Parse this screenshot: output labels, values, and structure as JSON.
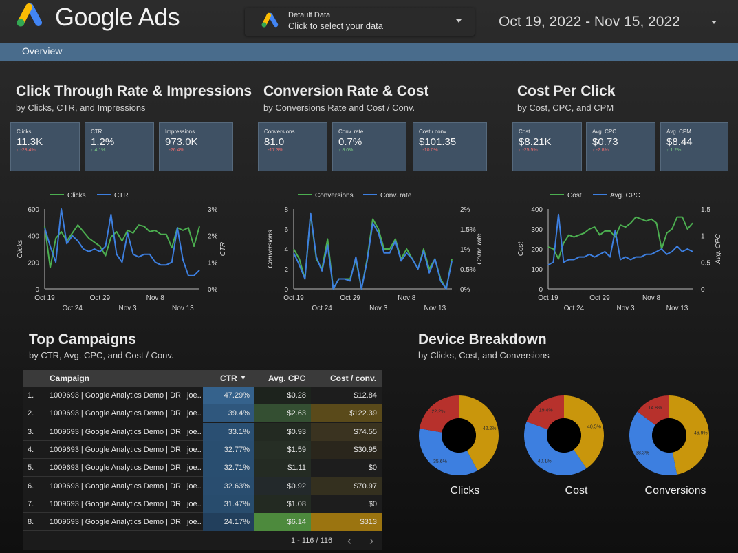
{
  "header": {
    "logo_text": "Google Ads",
    "data_source": {
      "title": "Default Data",
      "subtitle": "Click to select your data"
    },
    "date_range": "Oct 19, 2022 - Nov 15, 2022"
  },
  "nav": {
    "tab": "Overview"
  },
  "sections": {
    "ctr": {
      "title": "Click Through Rate & Impressions",
      "subtitle": "by Clicks, CTR, and Impressions"
    },
    "conv": {
      "title": "Conversion Rate & Cost",
      "subtitle": "by Conversions Rate and Cost / Conv."
    },
    "cpc": {
      "title": "Cost Per Click",
      "subtitle": "by Cost, CPC, and CPM"
    },
    "campaigns": {
      "title": "Top Campaigns",
      "subtitle": "by CTR, Avg. CPC, and Cost / Conv."
    },
    "device": {
      "title": "Device Breakdown",
      "subtitle": "by Clicks, Cost, and Conversions"
    }
  },
  "kpis": [
    {
      "label": "Clicks",
      "value": "11.3K",
      "delta": "↓ -23.4%",
      "direction": "down"
    },
    {
      "label": "CTR",
      "value": "1.2%",
      "delta": "↑ 4.1%",
      "direction": "up"
    },
    {
      "label": "Impressions",
      "value": "973.0K",
      "delta": "↓ -26.4%",
      "direction": "down"
    },
    {
      "label": "Conversions",
      "value": "81.0",
      "delta": "↓ -17.3%",
      "direction": "down"
    },
    {
      "label": "Conv. rate",
      "value": "0.7%",
      "delta": "↑ 8.0%",
      "direction": "up"
    },
    {
      "label": "Cost / conv.",
      "value": "$101.35",
      "delta": "↓ -10.0%",
      "direction": "down"
    },
    {
      "label": "Cost",
      "value": "$8.21K",
      "delta": "↓ -25.5%",
      "direction": "down"
    },
    {
      "label": "Avg. CPC",
      "value": "$0.73",
      "delta": "↓ -2.8%",
      "direction": "down"
    },
    {
      "label": "Avg. CPM",
      "value": "$8.44",
      "delta": "↑ 1.2%",
      "direction": "up"
    }
  ],
  "colors": {
    "green": "#4caf50",
    "blue": "#3d7fe0",
    "red": "#b7312c",
    "gold": "#c9960c",
    "slate": "#496c8c"
  },
  "chart_data": [
    {
      "type": "line",
      "x_ticks_top": [
        "Oct 19",
        "Oct 29",
        "Nov 8"
      ],
      "x_ticks_bottom": [
        "Oct 24",
        "Nov 3",
        "Nov 13"
      ],
      "ylabel_left": "Clicks",
      "ylabel_right": "CTR",
      "ylim_left": [
        0,
        600
      ],
      "yticks_left": [
        "0",
        "200",
        "400",
        "600"
      ],
      "ylim_right": [
        0,
        3
      ],
      "yticks_right": [
        "0%",
        "1%",
        "2%",
        "3%"
      ],
      "series": [
        {
          "name": "Clicks",
          "axis": "left",
          "values": [
            470,
            160,
            380,
            430,
            360,
            420,
            480,
            430,
            380,
            350,
            320,
            250,
            390,
            430,
            360,
            440,
            420,
            480,
            470,
            430,
            440,
            410,
            410,
            310,
            460,
            440,
            460,
            320,
            470
          ]
        },
        {
          "name": "CTR",
          "axis": "right",
          "values": [
            2.3,
            1.6,
            1.0,
            3.0,
            1.7,
            2.0,
            1.8,
            1.5,
            1.4,
            1.5,
            1.4,
            1.6,
            2.8,
            1.3,
            1.0,
            2.1,
            1.3,
            1.2,
            1.3,
            1.3,
            1.0,
            0.9,
            0.9,
            1.0,
            2.3,
            1.1,
            0.5,
            0.5,
            0.7
          ]
        }
      ]
    },
    {
      "type": "line",
      "x_ticks_top": [
        "Oct 19",
        "Oct 29",
        "Nov 8"
      ],
      "x_ticks_bottom": [
        "Oct 24",
        "Nov 3",
        "Nov 13"
      ],
      "ylabel_left": "Conversions",
      "ylabel_right": "Conv. rate",
      "ylim_left": [
        0,
        8
      ],
      "yticks_left": [
        "0",
        "2",
        "4",
        "6",
        "8"
      ],
      "ylim_right": [
        0,
        2
      ],
      "yticks_right": [
        "0%",
        "0.5%",
        "1%",
        "1.5%",
        "2%"
      ],
      "series": [
        {
          "name": "Conversions",
          "axis": "left",
          "values": [
            4,
            3,
            1,
            7.5,
            3,
            2,
            5,
            0,
            1,
            1,
            1,
            3,
            0,
            3,
            7,
            6,
            4,
            4,
            5,
            3,
            4,
            3,
            2,
            4,
            2,
            3,
            1,
            0,
            3
          ]
        },
        {
          "name": "Conv. rate",
          "axis": "right",
          "values": [
            0.9,
            0.6,
            0.25,
            1.9,
            0.8,
            0.45,
            1.1,
            0,
            0.25,
            0.25,
            0.2,
            0.8,
            0,
            0.7,
            1.65,
            1.4,
            0.9,
            0.9,
            1.2,
            0.7,
            0.9,
            0.75,
            0.5,
            0.95,
            0.4,
            0.75,
            0.2,
            0,
            0.7
          ]
        }
      ]
    },
    {
      "type": "line",
      "x_ticks_top": [
        "Oct 19",
        "Oct 29",
        "Nov 8"
      ],
      "x_ticks_bottom": [
        "Oct 24",
        "Nov 3",
        "Nov 13"
      ],
      "ylabel_left": "Cost",
      "ylabel_right": "Avg. CPC",
      "ylim_left": [
        0,
        400
      ],
      "yticks_left": [
        "0",
        "100",
        "200",
        "300",
        "400"
      ],
      "ylim_right": [
        0,
        1.5
      ],
      "yticks_right": [
        "0",
        "0.5",
        "1",
        "1.5"
      ],
      "series": [
        {
          "name": "Cost",
          "axis": "left",
          "values": [
            210,
            200,
            150,
            230,
            270,
            260,
            270,
            280,
            300,
            310,
            270,
            290,
            290,
            260,
            320,
            310,
            330,
            360,
            350,
            340,
            350,
            330,
            200,
            280,
            300,
            360,
            360,
            300,
            330
          ]
        },
        {
          "name": "Avg. CPC",
          "axis": "right",
          "values": [
            0.45,
            0.5,
            1.4,
            0.5,
            0.55,
            0.55,
            0.6,
            0.6,
            0.65,
            0.6,
            0.65,
            0.7,
            0.6,
            1.1,
            0.55,
            0.6,
            0.55,
            0.6,
            0.6,
            0.65,
            0.65,
            0.7,
            0.75,
            0.65,
            0.7,
            0.8,
            0.7,
            0.75,
            0.7
          ]
        }
      ]
    },
    {
      "type": "pie",
      "label": "Clicks",
      "slices": [
        {
          "name": "",
          "value": 42.2,
          "color": "gold"
        },
        {
          "name": "",
          "value": 35.6,
          "color": "blue"
        },
        {
          "name": "",
          "value": 22.2,
          "color": "red"
        }
      ]
    },
    {
      "type": "pie",
      "label": "Cost",
      "slices": [
        {
          "name": "",
          "value": 40.5,
          "color": "gold"
        },
        {
          "name": "",
          "value": 40.1,
          "color": "blue"
        },
        {
          "name": "",
          "value": 19.4,
          "color": "red"
        }
      ]
    },
    {
      "type": "pie",
      "label": "Conversions",
      "slices": [
        {
          "name": "",
          "value": 46.9,
          "color": "gold"
        },
        {
          "name": "",
          "value": 38.3,
          "color": "blue"
        },
        {
          "name": "",
          "value": 14.8,
          "color": "red"
        }
      ]
    }
  ],
  "table": {
    "columns": [
      "Campaign",
      "CTR",
      "Avg. CPC",
      "Cost / conv."
    ],
    "sort_indicator": "▾",
    "rows": [
      {
        "n": "1.",
        "campaign": "1009693 | Google Analytics Demo | DR | joe...",
        "ctr": "47.29%",
        "cpc": "$0.28",
        "cpa": "$12.84"
      },
      {
        "n": "2.",
        "campaign": "1009693 | Google Analytics Demo | DR | joe...",
        "ctr": "39.4%",
        "cpc": "$2.63",
        "cpa": "$122.39"
      },
      {
        "n": "3.",
        "campaign": "1009693 | Google Analytics Demo | DR | joe...",
        "ctr": "33.1%",
        "cpc": "$0.93",
        "cpa": "$74.55"
      },
      {
        "n": "4.",
        "campaign": "1009693 | Google Analytics Demo | DR | joe...",
        "ctr": "32.77%",
        "cpc": "$1.59",
        "cpa": "$30.95"
      },
      {
        "n": "5.",
        "campaign": "1009693 | Google Analytics Demo | DR | joe...",
        "ctr": "32.71%",
        "cpc": "$1.11",
        "cpa": "$0"
      },
      {
        "n": "6.",
        "campaign": "1009693 | Google Analytics Demo | DR | joe...",
        "ctr": "32.63%",
        "cpc": "$0.92",
        "cpa": "$70.97"
      },
      {
        "n": "7.",
        "campaign": "1009693 | Google Analytics Demo | DR | joe...",
        "ctr": "31.47%",
        "cpc": "$1.08",
        "cpa": "$0"
      },
      {
        "n": "8.",
        "campaign": "1009693 | Google Analytics Demo | DR | joe...",
        "ctr": "24.17%",
        "cpc": "$6.14",
        "cpa": "$313"
      }
    ],
    "pagination": "1 - 116 / 116",
    "prev": "‹",
    "next": "›"
  }
}
